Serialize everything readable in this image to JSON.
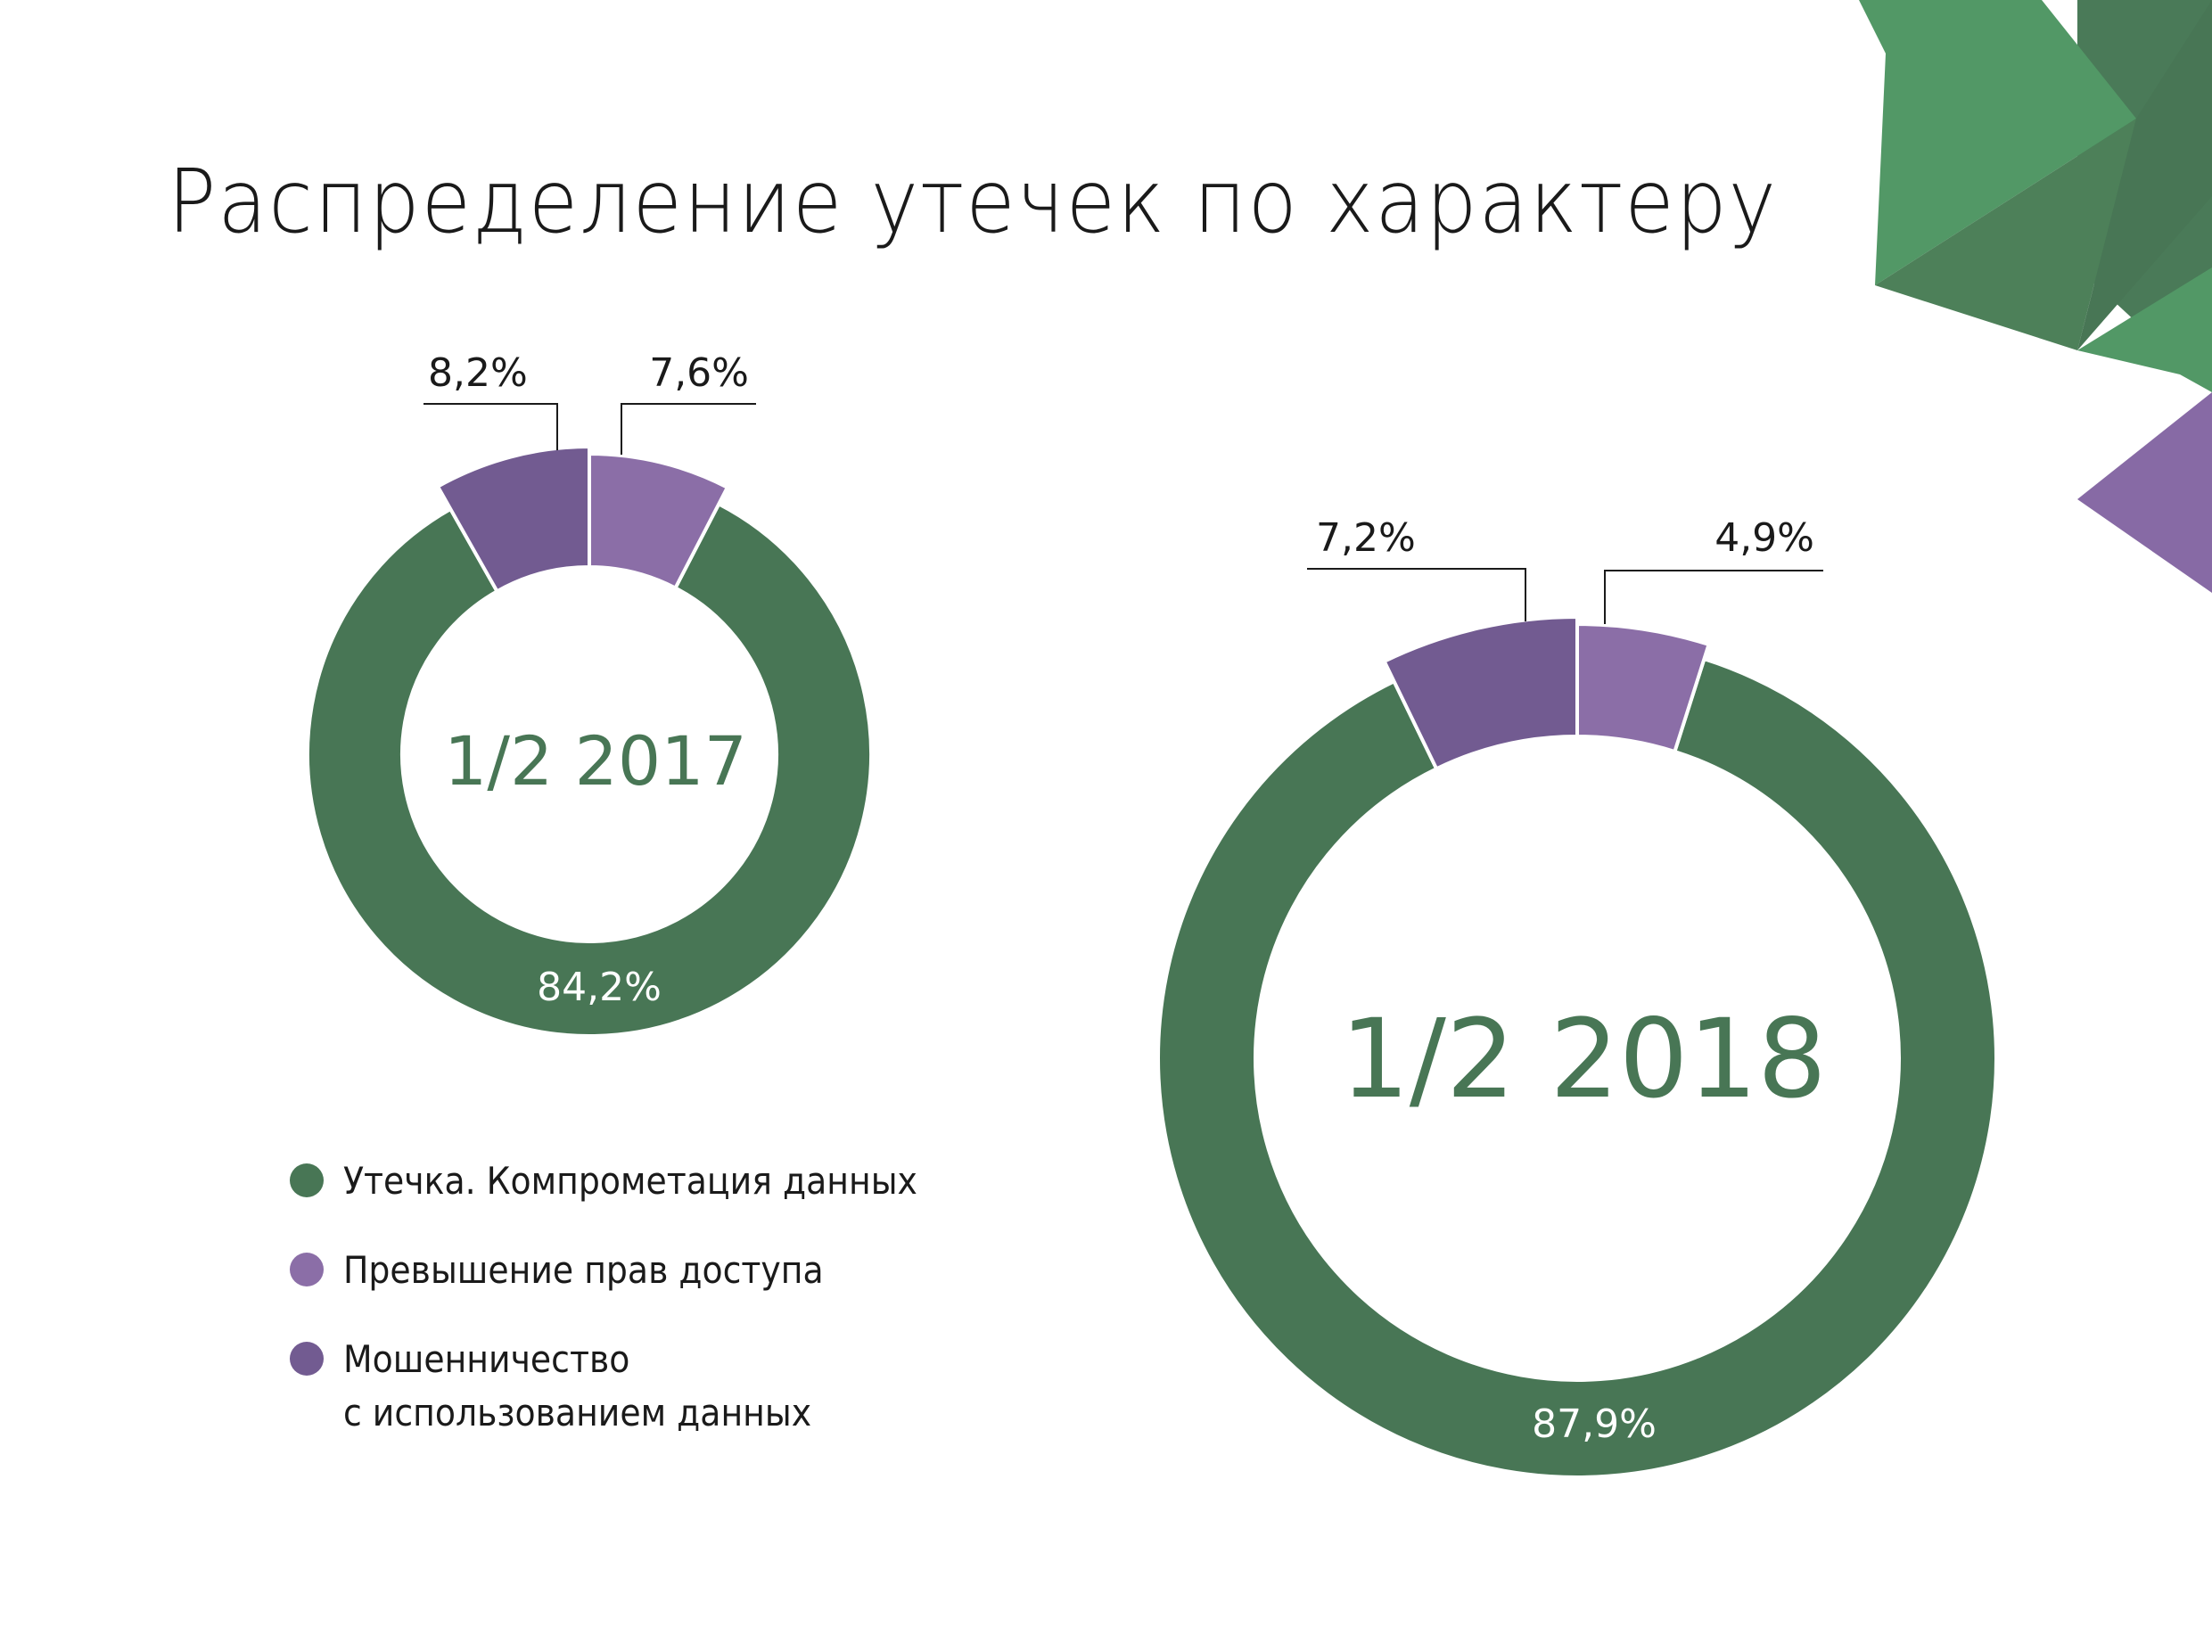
{
  "title": "Распределение утечек по характеру",
  "colors": {
    "leak": "#487655",
    "access": "#8b6ea7",
    "fraud": "#725b91",
    "deco_green_light": "#529866",
    "deco_green_dark": "#4a7a58",
    "deco_purple": "#876aa5"
  },
  "legend": [
    {
      "label": "Утечка. Компрометация данных",
      "color": "#487655"
    },
    {
      "label": "Превышение прав доступа",
      "color": "#8b6ea7"
    },
    {
      "label": "Мошенничество\nс использованием данных",
      "color": "#725b91"
    }
  ],
  "chart_data": [
    {
      "type": "pie",
      "donut": true,
      "title": "1/2 2017",
      "categories": [
        "Утечка. Компрометация данных",
        "Превышение прав доступа",
        "Мошенничество с использованием данных"
      ],
      "values": [
        84.2,
        7.6,
        8.2
      ],
      "labels": [
        "84,2%",
        "7,6%",
        "8,2%"
      ]
    },
    {
      "type": "pie",
      "donut": true,
      "title": "1/2 2018",
      "categories": [
        "Утечка. Компрометация данных",
        "Превышение прав доступа",
        "Мошенничество с использованием данных"
      ],
      "values": [
        87.9,
        4.9,
        7.2
      ],
      "labels": [
        "87,9%",
        "4,9%",
        "7,2%"
      ]
    }
  ]
}
